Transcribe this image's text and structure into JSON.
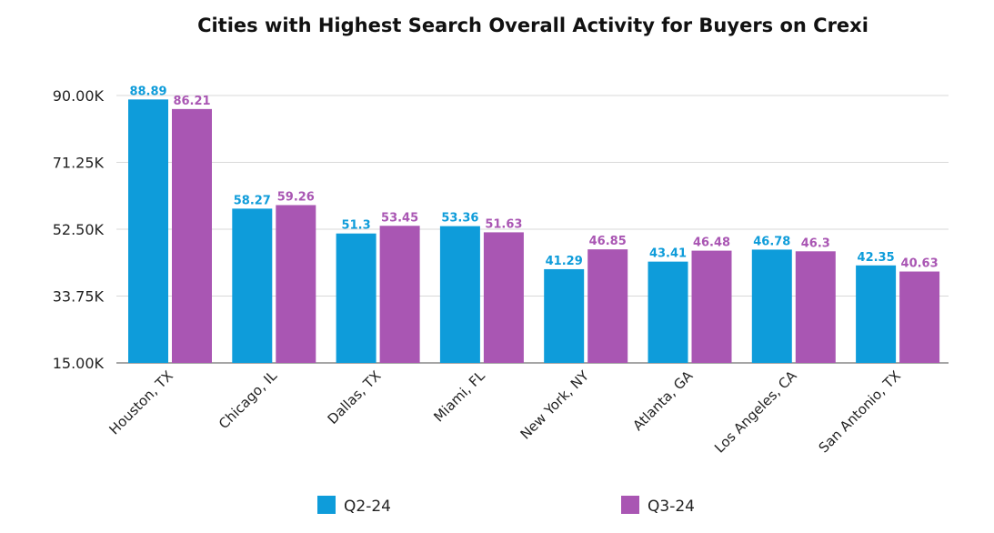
{
  "chart_data": {
    "type": "bar",
    "title": "Cities with Highest Search Overall Activity for Buyers on Crexi",
    "xlabel": "",
    "ylabel": "",
    "categories": [
      "Houston, TX",
      "Chicago, IL",
      "Dallas, TX",
      "Miami, FL",
      "New York, NY",
      "Atlanta, GA",
      "Los Angeles, CA",
      "San Antonio, TX"
    ],
    "series": [
      {
        "name": "Q2-24",
        "color": "#0E9CDA",
        "values": [
          88.89,
          58.27,
          51.3,
          53.36,
          41.29,
          43.41,
          46.78,
          42.35
        ],
        "labels": [
          "88.89",
          "58.27",
          "51.3",
          "53.36",
          "41.29",
          "43.41",
          "46.78",
          "42.35"
        ]
      },
      {
        "name": "Q3-24",
        "color": "#A956B3",
        "values": [
          86.21,
          59.26,
          53.45,
          51.63,
          46.85,
          46.48,
          46.3,
          40.63
        ],
        "labels": [
          "86.21",
          "59.26",
          "53.45",
          "51.63",
          "46.85",
          "46.48",
          "46.3",
          "40.63"
        ]
      }
    ],
    "ylim": [
      15,
      90
    ],
    "yticks": [
      15,
      33.75,
      52.5,
      71.25,
      90
    ],
    "ytick_labels": [
      "15.00K",
      "33.75K",
      "52.50K",
      "71.25K",
      "90.00K"
    ],
    "grid": true,
    "legend_position": "bottom"
  }
}
